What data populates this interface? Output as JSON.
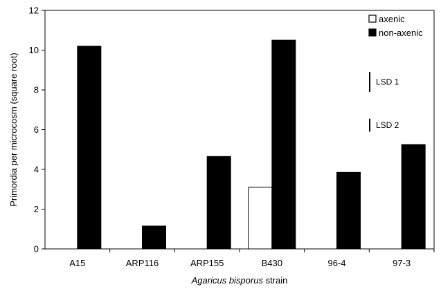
{
  "chart_data": {
    "type": "bar",
    "title": "",
    "ylabel": "Primordia per microcosm (square root)",
    "xlabel_italic": "Agaricus bisporus",
    "xlabel_rest": " strain",
    "categories": [
      "A15",
      "ARP116",
      "ARP155",
      "B430",
      "96-4",
      "97-3"
    ],
    "series": [
      {
        "name": "axenic",
        "values": [
          0,
          0,
          0,
          3.1,
          0,
          0
        ],
        "fill": "#ffffff",
        "stroke": "#000000"
      },
      {
        "name": "non-axenic",
        "values": [
          10.2,
          1.15,
          4.65,
          10.5,
          3.85,
          5.25
        ],
        "fill": "#000000",
        "stroke": "#000000"
      }
    ],
    "ylim": [
      0,
      12
    ],
    "yticks": [
      "0",
      "2",
      "4",
      "6",
      "8",
      "10",
      "12"
    ],
    "grid": false,
    "legend_position": "top-right",
    "lsd": [
      {
        "label": "LSD 1",
        "y_low": 7.9,
        "y_high": 8.9
      },
      {
        "label": "LSD 2",
        "y_low": 5.9,
        "y_high": 6.55
      }
    ]
  }
}
